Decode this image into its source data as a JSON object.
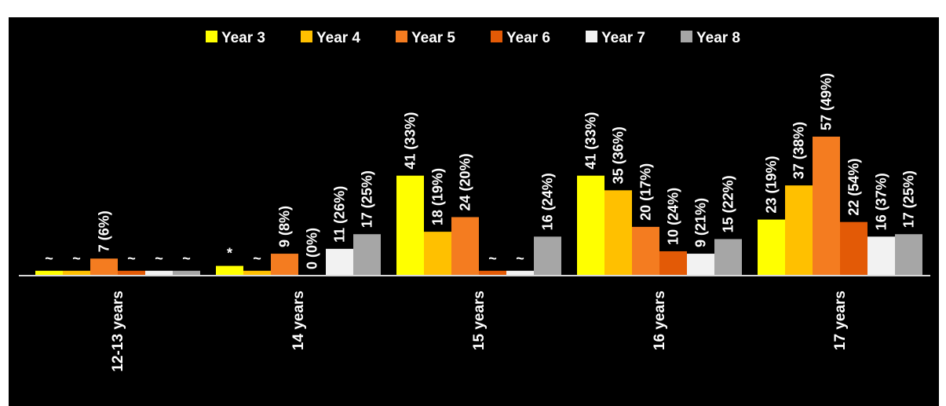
{
  "chart_data": {
    "type": "bar",
    "title": "",
    "xlabel": "",
    "ylabel": "",
    "categories": [
      "12-13 years",
      "14 years",
      "15 years",
      "16 years",
      "17 years"
    ],
    "ylim": [
      0,
      70
    ],
    "grid": false,
    "legend_position": "top",
    "series": [
      {
        "name": "Year 3",
        "color": "#ffff00",
        "values": [
          2,
          4,
          41,
          41,
          23
        ],
        "labels": [
          "~",
          "*",
          "41 (33%)",
          "41 (33%)",
          "23 (19%)"
        ]
      },
      {
        "name": "Year 4",
        "color": "#ffc000",
        "values": [
          2,
          2,
          18,
          35,
          37
        ],
        "labels": [
          "~",
          "~",
          "18 (19%)",
          "35 (36%)",
          "37 (38%)"
        ]
      },
      {
        "name": "Year 5",
        "color": "#f47c20",
        "values": [
          7,
          9,
          24,
          20,
          57
        ],
        "labels": [
          "7 (6%)",
          "9 (8%)",
          "24 (20%)",
          "20 (17%)",
          "57 (49%)"
        ]
      },
      {
        "name": "Year 6",
        "color": "#e35a06",
        "values": [
          2,
          0,
          2,
          10,
          22
        ],
        "labels": [
          "~",
          "0 (0%)",
          "~",
          "10 (24%)",
          "22 (54%)"
        ]
      },
      {
        "name": "Year 7",
        "color": "#f2f2f2",
        "values": [
          2,
          11,
          2,
          9,
          16
        ],
        "labels": [
          "~",
          "11 (26%)",
          "~",
          "9 (21%)",
          "16 (37%)"
        ]
      },
      {
        "name": "Year 8",
        "color": "#a6a6a6",
        "values": [
          2,
          17,
          16,
          15,
          17
        ],
        "labels": [
          "~",
          "17 (25%)",
          "16 (24%)",
          "15 (22%)",
          "17 (25%)"
        ]
      }
    ]
  }
}
